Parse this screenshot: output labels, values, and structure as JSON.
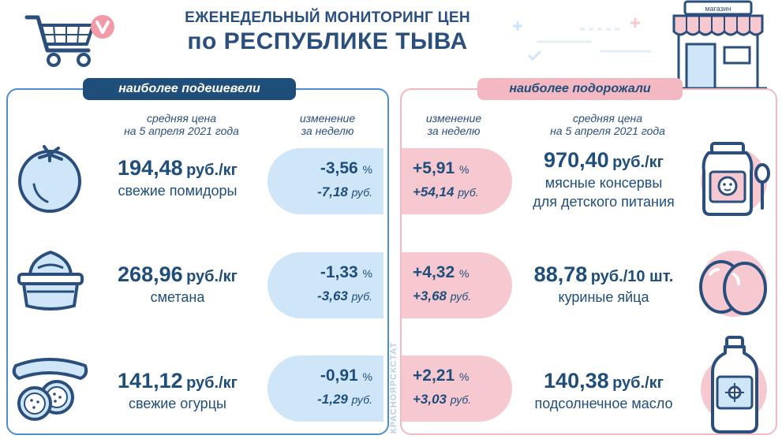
{
  "header": {
    "line1": "ЕЖЕНЕДЕЛЬНЫЙ МОНИТОРИНГ ЦЕН",
    "line2": "по РЕСПУБЛИКЕ ТЫВА",
    "shop_sign": "магазин"
  },
  "left_panel": {
    "tag": "наиболее подешевели",
    "col_price_1": "средняя цена",
    "col_price_2": "на 5 апреля 2021 года",
    "col_change_1": "изменение",
    "col_change_2": "за неделю",
    "items": [
      {
        "price": "194,48",
        "unit": "руб./кг",
        "name": "свежие помидоры",
        "pct": "-3,56",
        "rub": "-7,18",
        "icon": "tomato-icon"
      },
      {
        "price": "268,96",
        "unit": "руб./кг",
        "name": "сметана",
        "pct": "-1,33",
        "rub": "-3,63",
        "icon": "sour-cream-icon"
      },
      {
        "price": "141,12",
        "unit": "руб./кг",
        "name": "свежие огурцы",
        "pct": "-0,91",
        "rub": "-1,29",
        "icon": "cucumber-icon"
      }
    ]
  },
  "right_panel": {
    "tag": "наиболее подорожали",
    "col_change_1": "изменение",
    "col_change_2": "за неделю",
    "col_price_1": "средняя цена",
    "col_price_2": "на 5 апреля 2021 года",
    "items": [
      {
        "price": "970,40",
        "unit": "руб./кг",
        "name1": "мясные консервы",
        "name2": "для детского питания",
        "pct": "+5,91",
        "rub": "+54,14",
        "icon": "baby-food-jar-icon"
      },
      {
        "price": "88,78",
        "unit": "руб./10 шт.",
        "name1": "куриные яйца",
        "name2": "",
        "pct": "+4,32",
        "rub": "+3,68",
        "icon": "eggs-icon"
      },
      {
        "price": "140,38",
        "unit": "руб./кг",
        "name1": "подсолнечное масло",
        "name2": "",
        "pct": "+2,21",
        "rub": "+3,03",
        "icon": "oil-bottle-icon"
      }
    ]
  },
  "units": {
    "percent": "%",
    "rub": "руб."
  },
  "watermark": "КРАСНОЯРСКСТАТ",
  "colors": {
    "navy": "#1f4e7a",
    "blue_light": "#cfe5f8",
    "blue_border": "#4b8fd0",
    "pink": "#f6c9d1",
    "pink_border": "#f4b8c2"
  }
}
